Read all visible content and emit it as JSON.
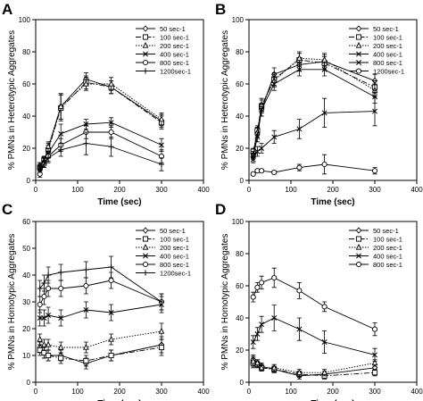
{
  "chart_data": [
    {
      "panel": "A",
      "type": "line",
      "xlabel": "Time (sec)",
      "ylabel": "% PMNs in Heterotypic Aggregates",
      "xlim": [
        0,
        400
      ],
      "ylim": [
        0,
        100
      ],
      "xticks": [
        0,
        100,
        200,
        300,
        400
      ],
      "yticks": [
        0,
        20,
        40,
        60,
        80,
        100
      ],
      "legend_position": "top-right",
      "series": [
        {
          "name": "50 sec-1",
          "marker": "diamond",
          "dash": "",
          "x": [
            10,
            20,
            30,
            60,
            120,
            180,
            300
          ],
          "y": [
            9,
            12,
            20,
            46,
            63,
            58,
            37
          ],
          "err": [
            2,
            2,
            3,
            8,
            4,
            4,
            4
          ]
        },
        {
          "name": "100 sec-1",
          "marker": "square",
          "dash": "6,2,1.5,2",
          "x": [
            10,
            20,
            30,
            60,
            120,
            180,
            300
          ],
          "y": [
            8,
            13,
            19,
            45,
            61,
            58,
            36
          ],
          "err": [
            2,
            2,
            3,
            8,
            4,
            4,
            4
          ]
        },
        {
          "name": "200 sec-1",
          "marker": "triangle",
          "dash": "1.5,1.5",
          "x": [
            10,
            20,
            30,
            60,
            120,
            180,
            300
          ],
          "y": [
            9,
            12,
            21,
            46,
            60,
            60,
            38
          ],
          "err": [
            2,
            2,
            3,
            8,
            4,
            4,
            4
          ]
        },
        {
          "name": "400 sec-1",
          "marker": "x",
          "dash": "",
          "x": [
            10,
            20,
            30,
            60,
            120,
            180,
            300
          ],
          "y": [
            8,
            13,
            17,
            29,
            35,
            36,
            22
          ],
          "err": [
            2,
            2,
            3,
            6,
            3,
            3,
            4
          ]
        },
        {
          "name": "800 sec-1",
          "marker": "circle",
          "dash": "",
          "x": [
            10,
            20,
            30,
            60,
            120,
            180,
            300
          ],
          "y": [
            4,
            10,
            15,
            22,
            30,
            30,
            15
          ],
          "err": [
            2,
            2,
            3,
            4,
            4,
            4,
            4
          ]
        },
        {
          "name": "1200sec-1",
          "marker": "plus",
          "dash": "",
          "x": [
            10,
            20,
            30,
            60,
            120,
            180,
            300
          ],
          "y": [
            7,
            10,
            14,
            19,
            23,
            21,
            10
          ],
          "err": [
            2,
            2,
            3,
            4,
            7,
            6,
            4
          ]
        }
      ]
    },
    {
      "panel": "B",
      "type": "line",
      "xlabel": "Time (sec)",
      "ylabel": "% PMNs in Heterotypic Aggregates",
      "xlim": [
        0,
        400
      ],
      "ylim": [
        0,
        100
      ],
      "xticks": [
        0,
        100,
        200,
        300,
        400
      ],
      "yticks": [
        0,
        20,
        40,
        60,
        80,
        100
      ],
      "legend_position": "top-right",
      "series": [
        {
          "name": "50 sec-1",
          "marker": "diamond",
          "dash": "",
          "x": [
            10,
            20,
            30,
            60,
            120,
            180,
            300
          ],
          "y": [
            17,
            30,
            44,
            66,
            72,
            74,
            62
          ],
          "err": [
            2,
            3,
            4,
            4,
            4,
            4,
            4
          ]
        },
        {
          "name": "100 sec-1",
          "marker": "square",
          "dash": "6,2,1.5,2",
          "x": [
            10,
            20,
            30,
            60,
            120,
            180,
            300
          ],
          "y": [
            18,
            31,
            46,
            63,
            75,
            73,
            58
          ],
          "err": [
            2,
            3,
            4,
            4,
            4,
            4,
            4
          ]
        },
        {
          "name": "200 sec-1",
          "marker": "triangle",
          "dash": "1.5,1.5",
          "x": [
            10,
            20,
            30,
            60,
            120,
            180,
            300
          ],
          "y": [
            16,
            30,
            47,
            62,
            76,
            75,
            56
          ],
          "err": [
            2,
            3,
            4,
            4,
            4,
            4,
            4
          ]
        },
        {
          "name": "400 sec-1",
          "marker": "x",
          "dash": "",
          "x": [
            10,
            20,
            30,
            60,
            120,
            180,
            300
          ],
          "y": [
            15,
            27,
            44,
            60,
            69,
            69,
            52
          ],
          "err": [
            2,
            3,
            4,
            4,
            4,
            4,
            4
          ]
        },
        {
          "name": "800 sec-1",
          "marker": "x",
          "dash": "",
          "x": [
            10,
            20,
            30,
            60,
            120,
            180,
            300
          ],
          "y": [
            13,
            18,
            20,
            27,
            32,
            42,
            43
          ],
          "err": [
            2,
            3,
            3,
            4,
            6,
            9,
            9
          ]
        },
        {
          "name": "1200sec-1",
          "marker": "circle",
          "dash": "",
          "x": [
            10,
            20,
            30,
            60,
            120,
            180,
            300
          ],
          "y": [
            4,
            6,
            6,
            5,
            8,
            10,
            6
          ],
          "err": [
            1,
            1,
            1,
            1,
            2,
            6,
            2
          ]
        }
      ]
    },
    {
      "panel": "C",
      "type": "line",
      "xlabel": "Time (sec)",
      "ylabel": "% PMNs in Homotypic Aggregates",
      "xlim": [
        0,
        400
      ],
      "ylim": [
        0,
        60
      ],
      "xticks": [
        0,
        100,
        200,
        300,
        400
      ],
      "yticks": [
        0,
        10,
        20,
        30,
        40,
        50,
        60
      ],
      "legend_position": "top-right",
      "series": [
        {
          "name": "50 sec-1",
          "marker": "diamond",
          "dash": "",
          "x": [
            10,
            20,
            30,
            60,
            120,
            180,
            300
          ],
          "y": [
            13,
            11,
            10,
            10,
            7,
            10,
            14
          ],
          "err": [
            2,
            2,
            2,
            2,
            2,
            2,
            3
          ]
        },
        {
          "name": "100 sec-1",
          "marker": "square",
          "dash": "6,2,1.5,2",
          "x": [
            10,
            20,
            30,
            60,
            120,
            180,
            300
          ],
          "y": [
            12,
            11,
            10,
            9,
            8,
            10,
            13
          ],
          "err": [
            2,
            2,
            2,
            2,
            2,
            2,
            3
          ]
        },
        {
          "name": "200 sec-1",
          "marker": "triangle",
          "dash": "1.5,1.5",
          "x": [
            10,
            20,
            30,
            60,
            120,
            180,
            300
          ],
          "y": [
            16,
            14,
            14,
            13,
            13,
            16,
            19
          ],
          "err": [
            2,
            2,
            2,
            2,
            2,
            2,
            3
          ]
        },
        {
          "name": "400 sec-1",
          "marker": "x",
          "dash": "",
          "x": [
            10,
            20,
            30,
            60,
            120,
            180,
            300
          ],
          "y": [
            24,
            24,
            25,
            24,
            27,
            26,
            29
          ],
          "err": [
            3,
            3,
            3,
            3,
            3,
            3,
            3
          ]
        },
        {
          "name": "800 sec-1",
          "marker": "circle",
          "dash": "",
          "x": [
            10,
            20,
            30,
            60,
            120,
            180,
            300
          ],
          "y": [
            29,
            32,
            35,
            35,
            36,
            38,
            30
          ],
          "err": [
            3,
            3,
            3,
            3,
            3,
            3,
            3
          ]
        },
        {
          "name": "1200sec-1",
          "marker": "plus",
          "dash": "",
          "x": [
            10,
            20,
            30,
            60,
            120,
            180,
            300
          ],
          "y": [
            35,
            37,
            40,
            41,
            42,
            43,
            30
          ],
          "err": [
            3,
            3,
            3,
            3,
            3,
            4,
            3
          ]
        }
      ]
    },
    {
      "panel": "D",
      "type": "line",
      "xlabel": "Time (sec)",
      "ylabel": "% PMNs in Homotypic Aggregates",
      "xlim": [
        0,
        400
      ],
      "ylim": [
        0,
        100
      ],
      "xticks": [
        0,
        100,
        200,
        300,
        400
      ],
      "yticks": [
        0,
        20,
        40,
        60,
        80,
        100
      ],
      "legend_position": "top-right",
      "series": [
        {
          "name": "50 sec-1",
          "marker": "diamond",
          "dash": "",
          "x": [
            10,
            20,
            30,
            60,
            120,
            180,
            300
          ],
          "y": [
            14,
            12,
            10,
            8,
            4,
            5,
            9
          ],
          "err": [
            3,
            2,
            2,
            2,
            2,
            2,
            2
          ]
        },
        {
          "name": "100 sec-1",
          "marker": "square",
          "dash": "6,2,1.5,2",
          "x": [
            10,
            20,
            30,
            60,
            120,
            180,
            300
          ],
          "y": [
            12,
            11,
            9,
            8,
            5,
            4,
            6
          ],
          "err": [
            3,
            2,
            2,
            2,
            2,
            2,
            2
          ]
        },
        {
          "name": "200 sec-1",
          "marker": "triangle",
          "dash": "1.5,1.5",
          "x": [
            10,
            20,
            30,
            60,
            120,
            180,
            300
          ],
          "y": [
            13,
            12,
            9,
            9,
            6,
            6,
            12
          ],
          "err": [
            3,
            2,
            2,
            2,
            2,
            2,
            2
          ]
        },
        {
          "name": "400 sec-1",
          "marker": "x",
          "dash": "",
          "x": [
            10,
            20,
            30,
            60,
            120,
            180,
            300
          ],
          "y": [
            25,
            30,
            36,
            40,
            33,
            25,
            17
          ],
          "err": [
            4,
            4,
            5,
            8,
            7,
            7,
            4
          ]
        },
        {
          "name": "800 sec-1",
          "marker": "circle",
          "dash": "",
          "x": [
            10,
            20,
            30,
            60,
            120,
            180,
            300
          ],
          "y": [
            53,
            59,
            62,
            65,
            57,
            47,
            33
          ],
          "err": [
            3,
            3,
            4,
            6,
            5,
            3,
            4
          ]
        }
      ]
    }
  ]
}
